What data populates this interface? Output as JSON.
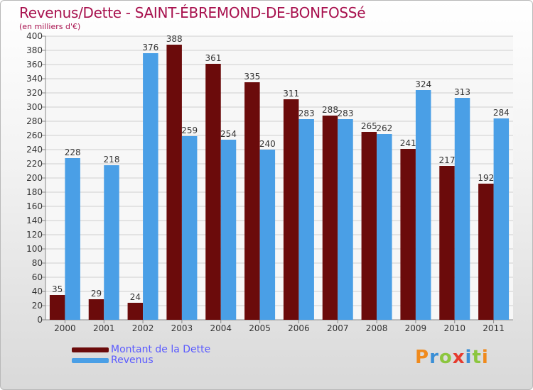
{
  "header": {
    "title": "Revenus/Dette - SAINT-ÉBREMOND-DE-BONFOSSé",
    "subtitle": "(en milliers d'€)"
  },
  "colors": {
    "dette": "#6b0b0b",
    "revenus": "#4a9fe6",
    "title": "#a8114e",
    "legend_text": "#5a5aff"
  },
  "chart_data": {
    "type": "bar",
    "title": "Revenus/Dette - SAINT-ÉBREMOND-DE-BONFOSSé",
    "subtitle": "(en milliers d'€)",
    "categories": [
      "2000",
      "2001",
      "2002",
      "2003",
      "2004",
      "2005",
      "2006",
      "2007",
      "2008",
      "2009",
      "2010",
      "2011"
    ],
    "series": [
      {
        "name": "Montant de la Dette",
        "values": [
          35,
          29,
          24,
          388,
          361,
          335,
          311,
          288,
          265,
          241,
          217,
          192
        ]
      },
      {
        "name": "Revenus",
        "values": [
          228,
          218,
          376,
          259,
          254,
          240,
          283,
          283,
          262,
          324,
          313,
          284
        ]
      }
    ],
    "ylim": [
      0,
      400
    ],
    "ytick_step": 20,
    "grid": true,
    "legend_position": "bottom-left"
  },
  "legend": {
    "items": [
      {
        "label": "Montant de la Dette"
      },
      {
        "label": "Revenus"
      }
    ]
  },
  "logo": {
    "letters": [
      "P",
      "r",
      "o",
      "x",
      "i",
      "t",
      "i"
    ]
  }
}
